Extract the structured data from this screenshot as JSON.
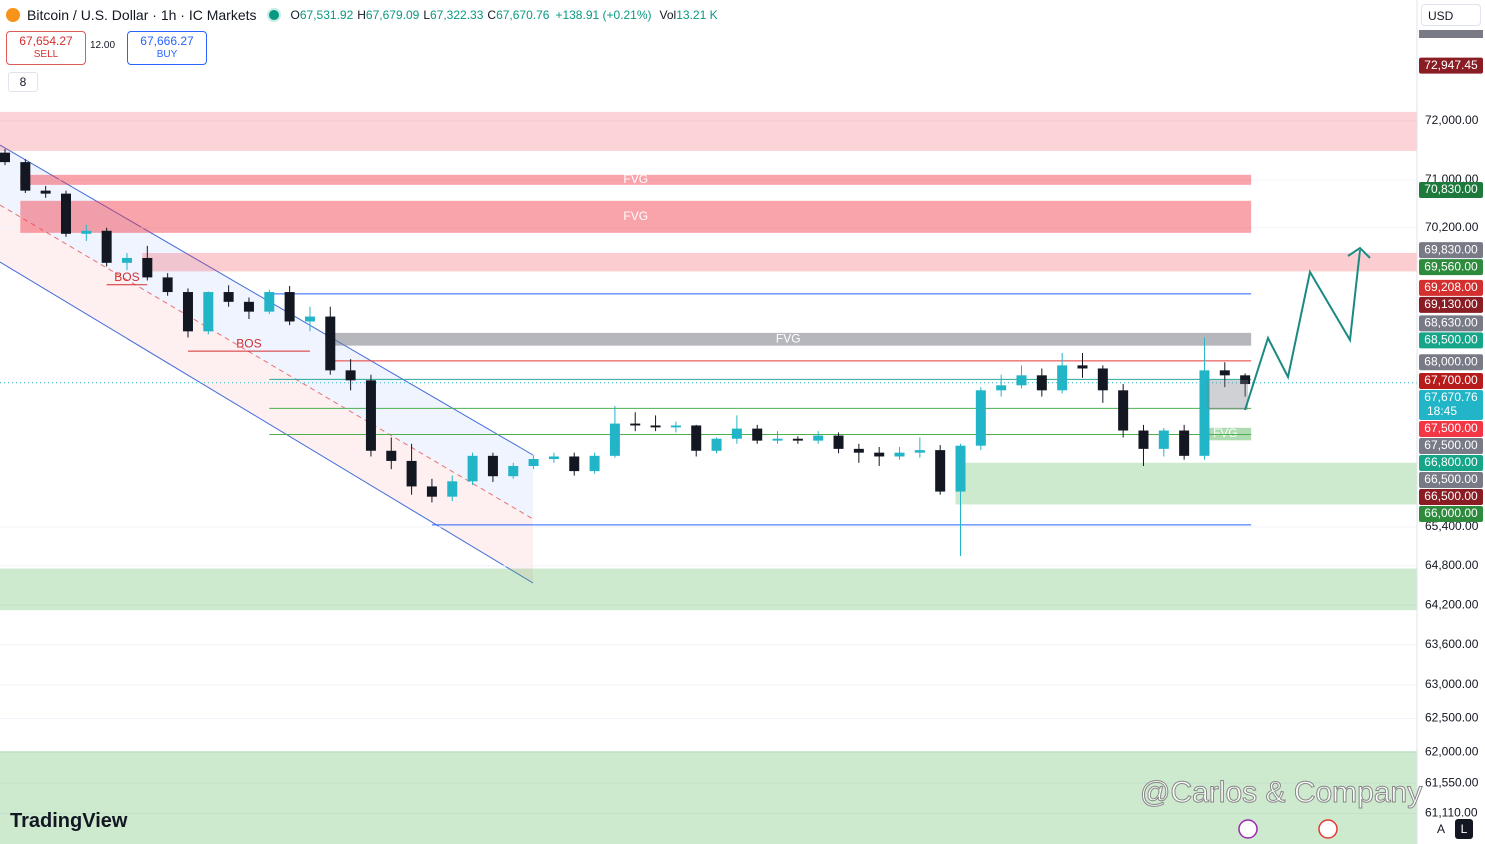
{
  "header": {
    "symbol": "Bitcoin / U.S. Dollar · 1h · IC Markets",
    "ohlc": [
      {
        "key": "O",
        "value": "67,531.92"
      },
      {
        "key": "H",
        "value": "67,679.09"
      },
      {
        "key": "L",
        "value": "67,322.33"
      },
      {
        "key": "C",
        "value": "67,670.76"
      }
    ],
    "change": "+138.91 (+0.21%)",
    "vol_label": "Vol",
    "vol": "13.21 K"
  },
  "trade": {
    "sell_price": "67,654.27",
    "sell": "SELL",
    "spread": "12.00",
    "buy_price": "67,666.27",
    "buy": "BUY"
  },
  "indicators_count": "8",
  "currency": "USD",
  "brand": "TradingView",
  "watermark": "@Carlos & Company",
  "scale_buttons": [
    "A",
    "L"
  ],
  "chart_data": {
    "type": "candlestick",
    "log_scale": true,
    "ylim": [
      60670,
      74090
    ],
    "up_color": "#22b5c8",
    "down_color": "#131722",
    "yticks": [
      {
        "value": 72000,
        "label": "72,000.00"
      },
      {
        "value": 71000,
        "label": "71,000.00"
      },
      {
        "value": 70200,
        "label": "70,200.00"
      },
      {
        "value": 65400,
        "label": "65,400.00"
      },
      {
        "value": 64800,
        "label": "64,800.00"
      },
      {
        "value": 64200,
        "label": "64,200.00"
      },
      {
        "value": 63600,
        "label": "63,600.00"
      },
      {
        "value": 63000,
        "label": "63,000.00"
      },
      {
        "value": 62500,
        "label": "62,500.00"
      },
      {
        "value": 62000,
        "label": "62,000.00"
      },
      {
        "value": 61550,
        "label": "61,550.00"
      },
      {
        "value": 61110,
        "label": "61,110.00"
      }
    ],
    "ohlc": [
      [
        71460,
        71520,
        71250,
        71300
      ],
      [
        71300,
        71350,
        70780,
        70820
      ],
      [
        70820,
        70900,
        70700,
        70770
      ],
      [
        70770,
        70820,
        70050,
        70100
      ],
      [
        70100,
        70250,
        69980,
        70150
      ],
      [
        70150,
        70200,
        69560,
        69620
      ],
      [
        69620,
        69780,
        69500,
        69700
      ],
      [
        69700,
        69900,
        69330,
        69380
      ],
      [
        69380,
        69450,
        69080,
        69140
      ],
      [
        69140,
        69200,
        68400,
        68500
      ],
      [
        68500,
        69150,
        68450,
        69140
      ],
      [
        69140,
        69250,
        68900,
        68980
      ],
      [
        68980,
        69050,
        68700,
        68820
      ],
      [
        68820,
        69180,
        68780,
        69140
      ],
      [
        69140,
        69240,
        68600,
        68660
      ],
      [
        68660,
        68900,
        68500,
        68740
      ],
      [
        68740,
        68900,
        67800,
        67870
      ],
      [
        67870,
        68050,
        67550,
        67710
      ],
      [
        67710,
        67800,
        66500,
        66590
      ],
      [
        66590,
        66800,
        66300,
        66430
      ],
      [
        66430,
        66700,
        65900,
        66030
      ],
      [
        66030,
        66150,
        65780,
        65870
      ],
      [
        65870,
        66200,
        65800,
        66110
      ],
      [
        66110,
        66560,
        66050,
        66510
      ],
      [
        66510,
        66560,
        66100,
        66190
      ],
      [
        66190,
        66400,
        66150,
        66350
      ],
      [
        66350,
        66520,
        66300,
        66460
      ],
      [
        66460,
        66560,
        66400,
        66500
      ],
      [
        66500,
        66560,
        66200,
        66270
      ],
      [
        66270,
        66560,
        66230,
        66510
      ],
      [
        66510,
        67300,
        66480,
        67020
      ],
      [
        67020,
        67200,
        66900,
        66990
      ],
      [
        66990,
        67150,
        66900,
        66960
      ],
      [
        66960,
        67050,
        66880,
        66990
      ],
      [
        66990,
        67000,
        66500,
        66590
      ],
      [
        66590,
        66800,
        66550,
        66780
      ],
      [
        66780,
        67150,
        66700,
        66940
      ],
      [
        66940,
        67000,
        66700,
        66750
      ],
      [
        66750,
        66900,
        66700,
        66780
      ],
      [
        66780,
        66820,
        66700,
        66750
      ],
      [
        66750,
        66900,
        66700,
        66830
      ],
      [
        66830,
        66880,
        66550,
        66620
      ],
      [
        66620,
        66700,
        66400,
        66560
      ],
      [
        66560,
        66650,
        66350,
        66500
      ],
      [
        66500,
        66650,
        66450,
        66560
      ],
      [
        66560,
        66800,
        66480,
        66600
      ],
      [
        66600,
        66680,
        65900,
        65950
      ],
      [
        65950,
        66700,
        64950,
        66670
      ],
      [
        66670,
        67600,
        66600,
        67550
      ],
      [
        67550,
        67800,
        67450,
        67630
      ],
      [
        67630,
        67950,
        67580,
        67790
      ],
      [
        67790,
        67900,
        67450,
        67550
      ],
      [
        67550,
        68150,
        67500,
        67950
      ],
      [
        67950,
        68150,
        67750,
        67900
      ],
      [
        67900,
        67950,
        67350,
        67550
      ],
      [
        67550,
        67650,
        66800,
        66910
      ],
      [
        66910,
        67000,
        66350,
        66620
      ],
      [
        66620,
        66950,
        66500,
        66910
      ],
      [
        66910,
        67000,
        66450,
        66510
      ],
      [
        66510,
        68400,
        66450,
        67870
      ],
      [
        67870,
        68000,
        67600,
        67790
      ],
      [
        67790,
        67820,
        67450,
        67650
      ]
    ],
    "zones": [
      {
        "top": 72153,
        "bottom": 71490,
        "start": 0,
        "extend_right": true,
        "color": "rgba(242,54,69,0.22)"
      },
      {
        "top": 71086,
        "bottom": 70917,
        "start": 1,
        "end": 61,
        "color": "rgba(242,54,69,0.45)",
        "label": "FVG",
        "label_color": "#ffffff"
      },
      {
        "top": 70650,
        "bottom": 70116,
        "start": 1,
        "end": 61,
        "color": "rgba(242,54,69,0.45)",
        "label": "FVG",
        "label_color": "#ffffff"
      },
      {
        "top": 69783,
        "bottom": 69479,
        "start": 7,
        "extend_right": true,
        "color": "rgba(242,54,69,0.25)"
      },
      {
        "top": 68475,
        "bottom": 68268,
        "start": 16,
        "end": 61,
        "color": "rgba(120,123,134,0.55)",
        "label": "FVG",
        "label_color": "#ffffff"
      },
      {
        "top": 66953,
        "bottom": 66755,
        "start": 59,
        "end": 61,
        "color": "rgba(76,175,80,0.45)",
        "label": "FVG",
        "label_color": "#ffffff"
      },
      {
        "top": 66401,
        "bottom": 65749,
        "start": 47,
        "extend_right": true,
        "color": "rgba(76,175,80,0.28)"
      },
      {
        "top": 64758,
        "bottom": 64123,
        "start": 0,
        "extend_right": true,
        "color": "rgba(76,175,80,0.28)"
      },
      {
        "top": 62020,
        "bottom": 60500,
        "start": 0,
        "extend_right": true,
        "color": "rgba(76,175,80,0.28)"
      }
    ],
    "levels": [
      {
        "value": 69110,
        "start": 13,
        "end": 61,
        "color": "#2962ff"
      },
      {
        "value": 68023,
        "start": 16,
        "end": 61,
        "color": "#e53935"
      },
      {
        "value": 67725,
        "start": 13,
        "end": 61,
        "color": "#26a69a"
      },
      {
        "value": 67262,
        "start": 13,
        "end": 61,
        "color": "#4caf50"
      },
      {
        "value": 66847,
        "start": 13,
        "end": 61,
        "color": "#4caf50"
      },
      {
        "value": 65431,
        "start": 21,
        "end": 61,
        "color": "#2962ff"
      }
    ],
    "bos": [
      {
        "label": "BOS",
        "value": 69260,
        "start": 5,
        "end": 7
      },
      {
        "label": "BOS",
        "value": 68179,
        "start": 9,
        "end": 15
      }
    ],
    "current_price": 67670.76,
    "price_tags": [
      {
        "value": 72947.45,
        "label": "72,947.45",
        "color": "#8a1c24"
      },
      {
        "value": 70830,
        "label": "70,830.00",
        "color": "#1e7a3c"
      },
      {
        "value": 69830,
        "label": "69,830.00",
        "color": "#787b86"
      },
      {
        "value": 69560,
        "label": "69,560.00",
        "color": "#2e8b3e"
      },
      {
        "value": 69208,
        "label": "69,208.00",
        "color": "#d32f2f"
      },
      {
        "value": 69130,
        "label": "69,130.00",
        "color": "#8a1c24"
      },
      {
        "value": 68630,
        "label": "68,630.00",
        "color": "#787b86"
      },
      {
        "value": 68500,
        "label": "68,500.00",
        "color": "#17a589"
      },
      {
        "value": 68000,
        "label": "68,000.00",
        "color": "#787b86"
      },
      {
        "value": 67700,
        "label": "67,700.00",
        "color": "#b71c1c"
      },
      {
        "value": 67670.76,
        "label": "67,670.76",
        "countdown": "18:45",
        "color": "#22b5c8"
      },
      {
        "value": 67500,
        "label": "67,500.00",
        "color": "#f23645"
      },
      {
        "value": 67500,
        "label": "67,500.00",
        "color": "#787b86"
      },
      {
        "value": 66800,
        "label": "66,800.00",
        "color": "#17a589"
      },
      {
        "value": 66500,
        "label": "66,500.00",
        "color": "#787b86"
      },
      {
        "value": 66500,
        "label": "66,500.00",
        "color": "#8a1c24"
      },
      {
        "value": 66000,
        "label": "66,000.00",
        "color": "#2e8b3e"
      }
    ]
  }
}
